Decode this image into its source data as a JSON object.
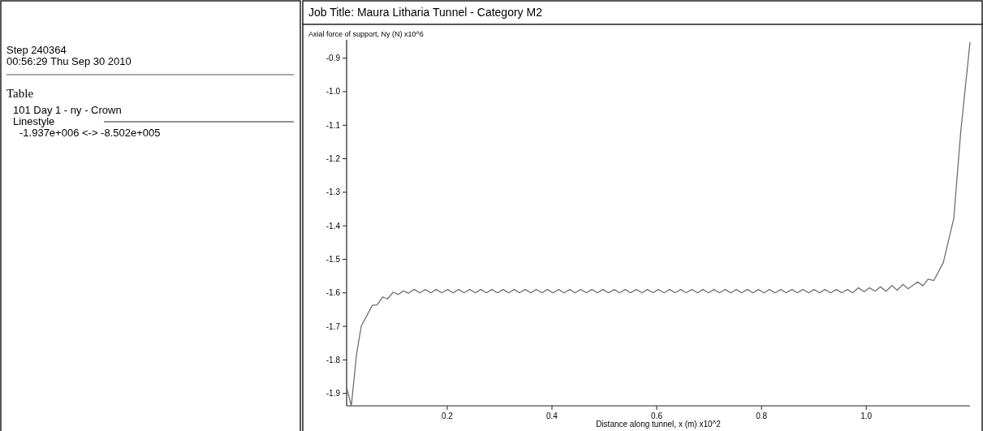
{
  "chart_data": {
    "type": "line",
    "title": "Job Title: Maura Litharia Tunnel - Category M2",
    "xlabel": "Distance along tunnel, x (m) x10^2",
    "ylabel": "Axial force of support, Ny (N) x10^6",
    "legend_title": "Table",
    "legend": "left",
    "annotations": [
      "Step 240364",
      "00:56:29 Thu Sep 30 2010",
      "Linestyle",
      "-1.937e+006 <-> -8.502e+005"
    ],
    "xlim": [
      0.008,
      1.198
    ],
    "ylim": [
      -1.937,
      -0.85
    ],
    "xticks": [
      0.2,
      0.4,
      0.6,
      0.8,
      {
        "value": 1,
        "label": "1.0"
      }
    ],
    "yticks": [
      -0.9,
      {
        "value": -1,
        "label": "-1.0"
      },
      -1.1,
      -1.2,
      -1.3,
      -1.4,
      -1.5,
      -1.6,
      -1.7,
      -1.8,
      -1.9
    ],
    "grid": false,
    "marker": "none",
    "line_style": "solid",
    "series": [
      {
        "name": "101 Day 1 - ny - Crown",
        "color": "#707070",
        "x": [
          0.008,
          0.017,
          0.027,
          0.036,
          0.057,
          0.066,
          0.077,
          0.086,
          0.097,
          0.107,
          0.116,
          0.126,
          0.137,
          0.148,
          0.158,
          0.169,
          0.179,
          0.19,
          0.201,
          0.211,
          0.222,
          0.232,
          0.243,
          0.254,
          0.264,
          0.275,
          0.285,
          0.296,
          0.307,
          0.317,
          0.328,
          0.338,
          0.349,
          0.36,
          0.37,
          0.381,
          0.391,
          0.402,
          0.413,
          0.423,
          0.434,
          0.444,
          0.455,
          0.466,
          0.476,
          0.487,
          0.497,
          0.508,
          0.519,
          0.529,
          0.54,
          0.55,
          0.561,
          0.572,
          0.582,
          0.593,
          0.603,
          0.614,
          0.625,
          0.635,
          0.646,
          0.656,
          0.667,
          0.678,
          0.688,
          0.699,
          0.709,
          0.72,
          0.731,
          0.741,
          0.752,
          0.762,
          0.773,
          0.784,
          0.794,
          0.805,
          0.815,
          0.826,
          0.837,
          0.847,
          0.858,
          0.868,
          0.879,
          0.89,
          0.9,
          0.911,
          0.921,
          0.932,
          0.943,
          0.953,
          0.964,
          0.974,
          0.985,
          0.996,
          1.006,
          1.017,
          1.027,
          1.038,
          1.049,
          1.059,
          1.07,
          1.08,
          1.098,
          1.108,
          1.118,
          1.129,
          1.147,
          1.167,
          1.18,
          1.198
        ],
        "values": [
          -1.882,
          -1.937,
          -1.783,
          -1.699,
          -1.637,
          -1.636,
          -1.612,
          -1.618,
          -1.598,
          -1.605,
          -1.594,
          -1.601,
          -1.59,
          -1.6,
          -1.59,
          -1.6,
          -1.59,
          -1.6,
          -1.59,
          -1.6,
          -1.59,
          -1.6,
          -1.59,
          -1.6,
          -1.59,
          -1.6,
          -1.59,
          -1.6,
          -1.59,
          -1.6,
          -1.59,
          -1.6,
          -1.59,
          -1.6,
          -1.59,
          -1.6,
          -1.59,
          -1.6,
          -1.59,
          -1.6,
          -1.59,
          -1.6,
          -1.59,
          -1.6,
          -1.59,
          -1.6,
          -1.59,
          -1.6,
          -1.59,
          -1.6,
          -1.59,
          -1.6,
          -1.59,
          -1.6,
          -1.59,
          -1.6,
          -1.59,
          -1.6,
          -1.59,
          -1.6,
          -1.59,
          -1.6,
          -1.59,
          -1.6,
          -1.59,
          -1.6,
          -1.59,
          -1.6,
          -1.59,
          -1.6,
          -1.59,
          -1.6,
          -1.59,
          -1.6,
          -1.59,
          -1.6,
          -1.59,
          -1.6,
          -1.59,
          -1.6,
          -1.59,
          -1.6,
          -1.59,
          -1.6,
          -1.59,
          -1.6,
          -1.59,
          -1.6,
          -1.59,
          -1.6,
          -1.59,
          -1.6,
          -1.585,
          -1.597,
          -1.585,
          -1.595,
          -1.582,
          -1.595,
          -1.578,
          -1.592,
          -1.575,
          -1.588,
          -1.567,
          -1.579,
          -1.559,
          -1.563,
          -1.51,
          -1.378,
          -1.125,
          -0.852
        ]
      }
    ]
  }
}
